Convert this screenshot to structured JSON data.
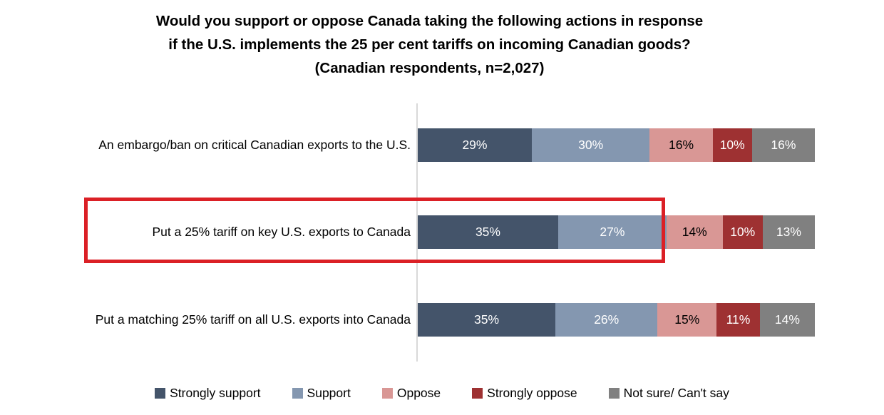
{
  "title": {
    "lines": [
      "Would you support or oppose Canada taking the following actions in response",
      "if the U.S. implements the 25 per cent tariffs on incoming Canadian goods?",
      "(Canadian respondents, n=2,027)"
    ]
  },
  "chart_data": {
    "type": "bar",
    "orientation": "horizontal",
    "stacked": true,
    "grid": "off",
    "legend_position": "bottom",
    "value_suffix": "%",
    "axis_line_color": "#d9d9d9",
    "categories": [
      "An embargo/ban on critical Canadian exports to the U.S.",
      "Put a 25% tariff on key U.S. exports to Canada",
      "Put a matching 25% tariff on all U.S. exports into Canada"
    ],
    "series": [
      {
        "name": "Strongly support",
        "color": "#44546A",
        "label_color": "#ffffff",
        "values": [
          29,
          35,
          35
        ]
      },
      {
        "name": "Support",
        "color": "#8497B0",
        "label_color": "#ffffff",
        "values": [
          30,
          27,
          26
        ]
      },
      {
        "name": "Oppose",
        "color": "#D99795",
        "label_color": "#000000",
        "values": [
          16,
          14,
          15
        ]
      },
      {
        "name": "Strongly oppose",
        "color": "#9E3132",
        "label_color": "#ffffff",
        "values": [
          10,
          10,
          11
        ]
      },
      {
        "name": "Not sure/ Can't say",
        "color": "#808080",
        "label_color": "#ffffff",
        "values": [
          16,
          13,
          14
        ]
      }
    ],
    "highlight": {
      "highlighted_category_index": 1,
      "border_color": "#DB2026"
    }
  }
}
